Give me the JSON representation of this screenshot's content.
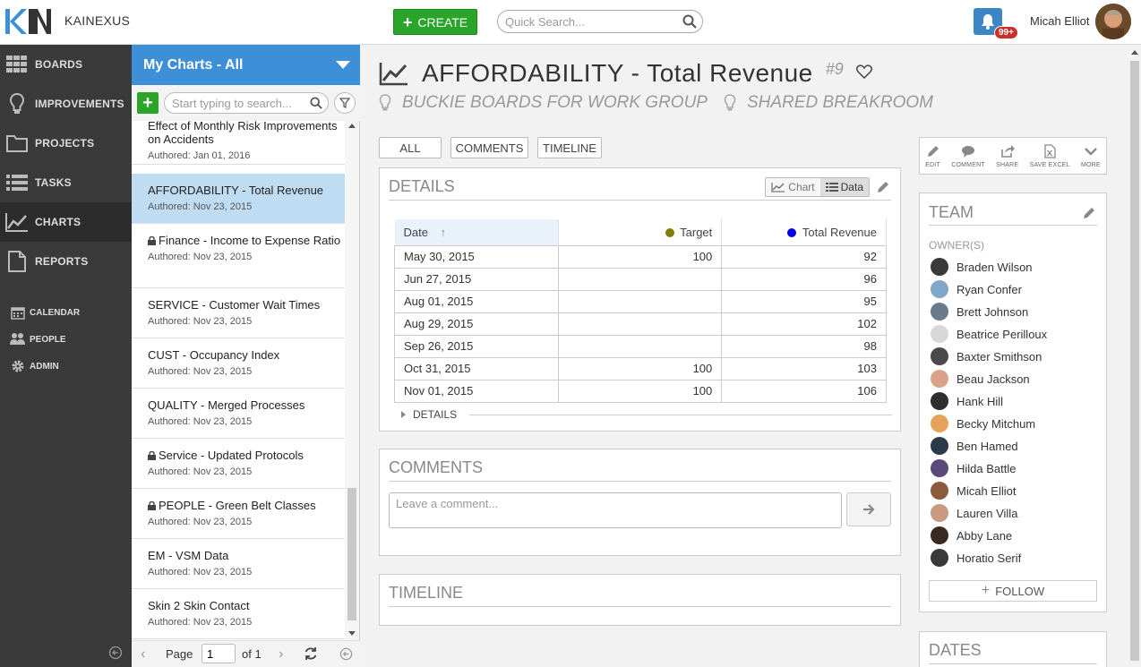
{
  "header": {
    "brand": "KAINEXUS",
    "create_label": "CREATE",
    "search_placeholder": "Quick Search...",
    "notification_count": "99+",
    "user_name": "Micah Elliot"
  },
  "nav": {
    "items": [
      {
        "label": "BOARDS",
        "icon": "grid-icon"
      },
      {
        "label": "IMPROVEMENTS",
        "icon": "lightbulb-icon"
      },
      {
        "label": "PROJECTS",
        "icon": "folder-icon"
      },
      {
        "label": "TASKS",
        "icon": "list-icon"
      },
      {
        "label": "CHARTS",
        "icon": "line-chart-icon"
      },
      {
        "label": "REPORTS",
        "icon": "document-icon"
      }
    ],
    "small_items": [
      {
        "label": "CALENDAR",
        "icon": "calendar-icon"
      },
      {
        "label": "PEOPLE",
        "icon": "people-icon"
      },
      {
        "label": "ADMIN",
        "icon": "gear-icon"
      }
    ]
  },
  "list": {
    "title": "My Charts - All",
    "search_placeholder": "Start typing to search...",
    "items": [
      {
        "title": "Effect of Monthly Risk Improvements on Accidents",
        "sub": "Authored: Jan 01, 2016",
        "locked": false
      },
      {
        "title": "AFFORDABILITY - Total Revenue",
        "sub": "Authored: Nov 23, 2015",
        "locked": false
      },
      {
        "title": "Finance - Income to Expense Ratio",
        "sub": "Authored: Nov 23, 2015",
        "locked": true
      },
      {
        "title": "SERVICE - Customer Wait Times",
        "sub": "Authored: Nov 23, 2015",
        "locked": false
      },
      {
        "title": "CUST - Occupancy Index",
        "sub": "Authored: Nov 23, 2015",
        "locked": false
      },
      {
        "title": "QUALITY - Merged Processes",
        "sub": "Authored: Nov 23, 2015",
        "locked": false
      },
      {
        "title": "Service - Updated Protocols",
        "sub": "Authored: Nov 23, 2015",
        "locked": true
      },
      {
        "title": "PEOPLE - Green Belt Classes",
        "sub": "Authored: Nov 23, 2015",
        "locked": true
      },
      {
        "title": "EM - VSM Data",
        "sub": "Authored: Nov 23, 2015",
        "locked": false
      },
      {
        "title": "Skin 2 Skin Contact",
        "sub": "Authored: Nov 23, 2015",
        "locked": false
      }
    ],
    "pager": {
      "page_label": "Page",
      "page_value": "1",
      "of_label": "of 1"
    }
  },
  "main": {
    "title": "AFFORDABILITY - Total Revenue",
    "number": "#9",
    "board": "BUCKIE BOARDS FOR WORK GROUP",
    "location": "SHARED BREAKROOM",
    "tabs": [
      "ALL",
      "COMMENTS",
      "TIMELINE"
    ],
    "details": {
      "title": "DETAILS",
      "chart_label": "Chart",
      "data_label": "Data",
      "columns": {
        "date": "Date",
        "target": "Target",
        "revenue": "Total Revenue"
      },
      "colors": {
        "target": "#808000",
        "revenue": "#0000ee"
      },
      "rows": [
        {
          "date": "May 30, 2015",
          "target": "100",
          "revenue": "92"
        },
        {
          "date": "Jun 27, 2015",
          "target": "",
          "revenue": "96"
        },
        {
          "date": "Aug 01, 2015",
          "target": "",
          "revenue": "95"
        },
        {
          "date": "Aug 29, 2015",
          "target": "",
          "revenue": "102"
        },
        {
          "date": "Sep 26, 2015",
          "target": "",
          "revenue": "98"
        },
        {
          "date": "Oct 31, 2015",
          "target": "100",
          "revenue": "103"
        },
        {
          "date": "Nov 01, 2015",
          "target": "100",
          "revenue": "106"
        }
      ],
      "toggle_label": "DETAILS"
    },
    "comments": {
      "title": "COMMENTS",
      "placeholder": "Leave a comment..."
    },
    "timeline": {
      "title": "TIMELINE"
    }
  },
  "actions": [
    {
      "label": "EDIT",
      "icon": "pencil-icon"
    },
    {
      "label": "COMMENT",
      "icon": "speech-bubble-icon"
    },
    {
      "label": "SHARE",
      "icon": "share-icon"
    },
    {
      "label": "SAVE EXCEL",
      "icon": "excel-icon"
    },
    {
      "label": "MORE",
      "icon": "chevron-down-icon"
    }
  ],
  "team": {
    "title": "TEAM",
    "owners_label": "OWNER(S)",
    "members": [
      {
        "name": "Braden Wilson",
        "color": "#3a3a3a"
      },
      {
        "name": "Ryan Confer",
        "color": "#7fa7c9"
      },
      {
        "name": "Brett Johnson",
        "color": "#6b7b8c"
      },
      {
        "name": "Beatrice Perilloux",
        "color": "#d8d8d8"
      },
      {
        "name": "Baxter Smithson",
        "color": "#4a4a4a"
      },
      {
        "name": "Beau Jackson",
        "color": "#d9a38a"
      },
      {
        "name": "Hank Hill",
        "color": "#2f2f2f"
      },
      {
        "name": "Becky Mitchum",
        "color": "#e8a35a"
      },
      {
        "name": "Ben Hamed",
        "color": "#2a3a4a"
      },
      {
        "name": "Hilda Battle",
        "color": "#5a4a7a"
      },
      {
        "name": "Micah Elliot",
        "color": "#8b5a3b"
      },
      {
        "name": "Lauren Villa",
        "color": "#c89a80"
      },
      {
        "name": "Abby Lane",
        "color": "#3b2a22"
      },
      {
        "name": "Horatio Serif",
        "color": "#3a3a3a"
      }
    ],
    "follow_label": "FOLLOW"
  },
  "dates": {
    "title": "DATES"
  }
}
